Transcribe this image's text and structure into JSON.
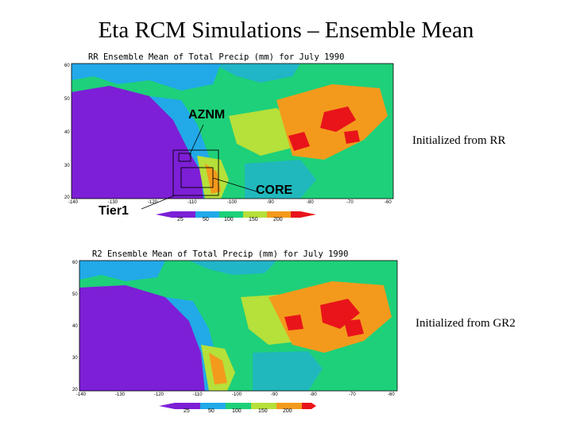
{
  "title": "Eta RCM Simulations – Ensemble Mean",
  "panels": [
    {
      "caption": "RR Ensemble Mean of Total Precip (mm) for July 1990",
      "init_label": "Initialized from RR",
      "lat_ticks": [
        "60",
        "50",
        "40",
        "30",
        "20"
      ],
      "lon_ticks": [
        "-140",
        "-130",
        "-120",
        "-110",
        "-100",
        "-90",
        "-80",
        "-70",
        "-60"
      ],
      "legend_values": [
        "25",
        "50",
        "100",
        "150",
        "200"
      ]
    },
    {
      "caption": "R2 Ensemble Mean of Total Precip (mm) for July 1990",
      "init_label": "Initialized from GR2",
      "lat_ticks": [
        "60",
        "50",
        "40",
        "30",
        "20"
      ],
      "lon_ticks": [
        "-140",
        "-130",
        "-120",
        "-110",
        "-100",
        "-90",
        "-80",
        "-70",
        "-60"
      ],
      "legend_values": [
        "25",
        "50",
        "100",
        "150",
        "200"
      ]
    }
  ],
  "regions": {
    "aznm": "AZNM",
    "core": "CORE",
    "tier1": "Tier1"
  },
  "colors": {
    "lt25": "#7d1fd6",
    "25_50": "#21a9e8",
    "50_100": "#1ed07a",
    "100_150": "#b6e03a",
    "150_200": "#f39a1c",
    "gt200": "#e8141a",
    "ocean_default": "#1ed07a"
  }
}
